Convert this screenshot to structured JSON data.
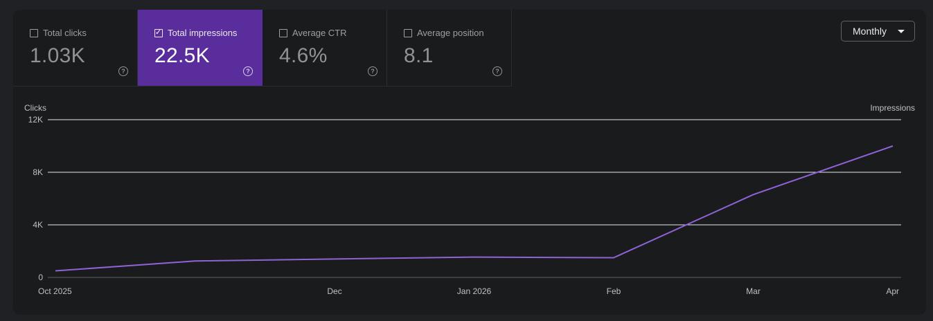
{
  "metrics": [
    {
      "label": "Total clicks",
      "value": "1.03K",
      "checked": false
    },
    {
      "label": "Total impressions",
      "value": "22.5K",
      "checked": true
    },
    {
      "label": "Average CTR",
      "value": "4.6%",
      "checked": false
    },
    {
      "label": "Average position",
      "value": "8.1",
      "checked": false
    }
  ],
  "help_glyph": "?",
  "check_glyph": "✓",
  "period_select": {
    "value": "Monthly"
  },
  "colors": {
    "accent": "#5a2d9c",
    "line": "#8f63d8",
    "gridline": "#e8eaed",
    "background": "#1a1b1d"
  },
  "chart_data": {
    "type": "line",
    "left_axis_label": "Clicks",
    "right_axis_label": "Impressions",
    "y_ticks": [
      "0",
      "4K",
      "8K",
      "12K"
    ],
    "ylim": [
      0,
      12000
    ],
    "x_tick_labels": [
      "Oct 2025",
      "Dec",
      "Jan 2026",
      "Feb",
      "Mar",
      "Apr"
    ],
    "x": [
      "Oct 2025",
      "Nov 2025",
      "Dec 2025",
      "Jan 2026",
      "Feb 2026",
      "Mar 2026",
      "Apr 2026"
    ],
    "series": [
      {
        "values": [
          500,
          1250,
          1400,
          1550,
          1500,
          6300,
          10000
        ]
      }
    ],
    "grid": true
  }
}
